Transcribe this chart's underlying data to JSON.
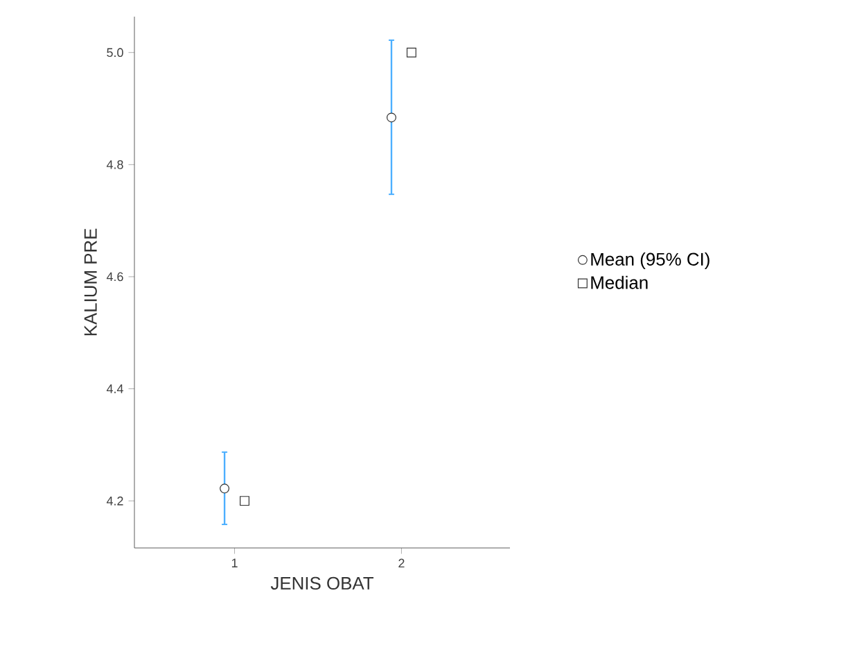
{
  "chart_data": {
    "type": "scatter",
    "xlabel": "JENIS OBAT",
    "ylabel": "KALIUM PRE",
    "categories": [
      "1",
      "2"
    ],
    "series": [
      {
        "name": "Mean (95% CI)",
        "color": "#333333",
        "marker": "circle",
        "values": [
          4.222,
          4.884
        ],
        "errors": [
          [
            4.158,
            4.287
          ],
          [
            4.747,
            5.022
          ]
        ]
      },
      {
        "name": "Median",
        "color": "#333333",
        "marker": "square",
        "values": [
          4.2,
          5.0
        ]
      }
    ],
    "ylim": [
      4.116,
      5.064
    ],
    "yticks": [
      4.2,
      4.4,
      4.6,
      4.8,
      {
        "value": 5.0,
        "label": "5.0"
      }
    ],
    "grid": false,
    "legend": "right"
  }
}
